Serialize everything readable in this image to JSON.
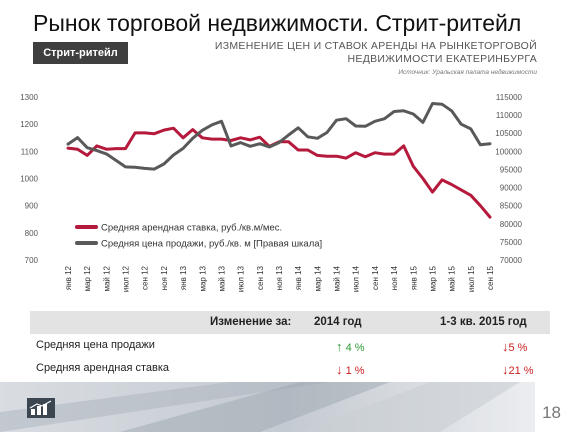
{
  "slide": {
    "title": "Рынок торговой недвижимости. Стрит-ритейл",
    "section_badge": "Стрит-ритейл",
    "chart_title_line1": "ИЗМЕНЕНИЕ ЦЕН И СТАВОК АРЕНДЫ НА РЫНКЕТОРГОВОЙ",
    "chart_title_line2": "НЕДВИЖИМОСТИ ЕКАТЕРИНБУРГА",
    "chart_source": "Источник: Уральская палата недвижимости",
    "page_number": "18"
  },
  "colors": {
    "rent": "#b5193b",
    "price": "#595959",
    "up": "#2e9b34",
    "down": "#cc1e1e",
    "badge": "#3f3f3f"
  },
  "chart_data": {
    "type": "line",
    "x": [
      "янв 12",
      "фев 12",
      "мар 12",
      "апр 12",
      "май 12",
      "июн 12",
      "июл 12",
      "авг 12",
      "сен 12",
      "окт 12",
      "ноя 12",
      "дек 12",
      "янв 13",
      "фев 13",
      "мар 13",
      "апр 13",
      "май 13",
      "июн 13",
      "июл 13",
      "авг 13",
      "сен 13",
      "окт 13",
      "ноя 13",
      "дек 13",
      "янв 14",
      "фев 14",
      "мар 14",
      "апр 14",
      "май 14",
      "июн 14",
      "июл 14",
      "авг 14",
      "сен 14",
      "окт 14",
      "ноя 14",
      "дек 14",
      "янв 15",
      "фев 15",
      "мар 15",
      "апр 15",
      "май 15",
      "июн 15",
      "июл 15",
      "авг 15",
      "сен 15"
    ],
    "tick_labels": [
      "янв 12",
      "мар 12",
      "май 12",
      "июл 12",
      "сен 12",
      "ноя 12",
      "янв 13",
      "мар 13",
      "май 13",
      "июл 13",
      "сен 13",
      "ноя 13",
      "янв 14",
      "мар 14",
      "май 14",
      "июл 14",
      "сен 14",
      "ноя 14",
      "янв 15",
      "мар 15",
      "май 15",
      "июл 15",
      "сен 15"
    ],
    "y_left": {
      "min": 700,
      "max": 1300,
      "ticks": [
        700,
        800,
        900,
        1000,
        1100,
        1200,
        1300
      ]
    },
    "y_right": {
      "min": 70000,
      "max": 115000,
      "ticks": [
        70000,
        75000,
        80000,
        85000,
        90000,
        95000,
        100000,
        105000,
        110000,
        115000
      ]
    },
    "grid": false,
    "legend_position": "inside-bottom-left",
    "series": [
      {
        "name": "Средняя арендная ставка, руб./кв.м/мес.",
        "axis": "left",
        "color": "#b5193b",
        "values": [
          1112,
          1108,
          1085,
          1120,
          1108,
          1110,
          1110,
          1168,
          1168,
          1165,
          1178,
          1185,
          1150,
          1180,
          1150,
          1145,
          1145,
          1140,
          1150,
          1142,
          1152,
          1118,
          1135,
          1135,
          1105,
          1105,
          1085,
          1082,
          1082,
          1075,
          1095,
          1080,
          1095,
          1090,
          1090,
          1120,
          1045,
          1000,
          950,
          995,
          978,
          958,
          938,
          900,
          858
        ]
      },
      {
        "name": "Средняя цена продажи, руб./кв. м [Правая шкала]",
        "axis": "right",
        "color": "#595959",
        "values": [
          102000,
          103800,
          101000,
          100200,
          99300,
          97500,
          95700,
          95600,
          95300,
          95100,
          96500,
          99000,
          100800,
          103600,
          105800,
          107300,
          108300,
          101500,
          102400,
          101400,
          102100,
          101200,
          102400,
          104500,
          106500,
          104000,
          103600,
          105200,
          108600,
          109000,
          107000,
          106900,
          108300,
          109000,
          111000,
          111200,
          110300,
          108000,
          113200,
          113000,
          111200,
          107500,
          106200,
          101800,
          102100
        ]
      }
    ]
  },
  "summary": {
    "header": {
      "label": "Изменение за:",
      "col1": "2014 год",
      "col2": "1-3 кв. 2015 год"
    },
    "rows": [
      {
        "label": "Средняя цена продажи",
        "v1": "4 %",
        "v1_dir": "up",
        "v2": "5 %",
        "v2_dir": "down"
      },
      {
        "label": "Средняя арендная ставка",
        "v1": "1 %",
        "v1_dir": "down",
        "v2": "21 %",
        "v2_dir": "down"
      }
    ]
  }
}
